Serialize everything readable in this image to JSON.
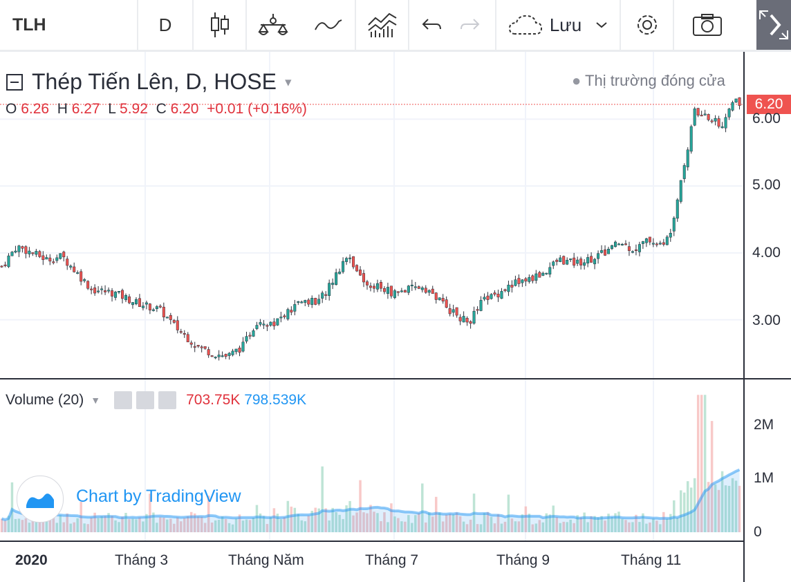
{
  "toolbar": {
    "symbol": "TLH",
    "interval": "D",
    "save_label": "Lưu",
    "icons": [
      "candles-icon",
      "indicators-icon",
      "compare-icon",
      "templates-icon",
      "undo-icon",
      "redo-icon",
      "cloud-icon",
      "chevron-down-icon",
      "settings-icon",
      "camera-icon",
      "fullscreen-icon"
    ]
  },
  "legend": {
    "title": "Thép Tiến Lên, D, HOSE",
    "o_label": "O",
    "o_value": "6.26",
    "h_label": "H",
    "h_value": "6.27",
    "l_label": "L",
    "l_value": "5.92",
    "c_label": "C",
    "c_value": "6.20",
    "change": "+0.01 (+0.16%)",
    "market_status": "Thị trường đóng cửa"
  },
  "price_axis": {
    "current_price": "6.20",
    "ticks": [
      "6.00",
      "5.00",
      "4.00",
      "3.00"
    ]
  },
  "volume": {
    "label": "Volume (20)",
    "value": "703.75K",
    "ma_value": "798.539K",
    "ticks": [
      "2M",
      "1M",
      "0"
    ]
  },
  "brand": "Chart by TradingView",
  "time_axis": [
    "2020",
    "Tháng 3",
    "Tháng Năm",
    "Tháng 7",
    "Tháng 9",
    "Tháng 11"
  ],
  "colors": {
    "up": "#26a69a",
    "down": "#ef5350",
    "ma": "#2196f3",
    "accent": "#2196f3"
  },
  "chart_data": {
    "type": "candlestick",
    "symbol": "TLH",
    "interval": "D",
    "price_ylim": [
      2.2,
      6.8
    ],
    "volume_ylim": [
      0,
      2800000
    ],
    "series_close": [
      [
        0.0,
        3.8
      ],
      [
        0.02,
        4.1
      ],
      [
        0.04,
        4.0
      ],
      [
        0.06,
        3.9
      ],
      [
        0.08,
        3.95
      ],
      [
        0.1,
        3.7
      ],
      [
        0.12,
        3.45
      ],
      [
        0.15,
        3.4
      ],
      [
        0.18,
        3.25
      ],
      [
        0.21,
        3.15
      ],
      [
        0.23,
        2.9
      ],
      [
        0.26,
        2.6
      ],
      [
        0.28,
        2.5
      ],
      [
        0.3,
        2.45
      ],
      [
        0.32,
        2.6
      ],
      [
        0.34,
        3.0
      ],
      [
        0.36,
        2.95
      ],
      [
        0.38,
        3.1
      ],
      [
        0.4,
        3.3
      ],
      [
        0.42,
        3.25
      ],
      [
        0.44,
        3.6
      ],
      [
        0.46,
        4.0
      ],
      [
        0.48,
        3.55
      ],
      [
        0.5,
        3.5
      ],
      [
        0.52,
        3.4
      ],
      [
        0.54,
        3.45
      ],
      [
        0.56,
        3.5
      ],
      [
        0.58,
        3.3
      ],
      [
        0.6,
        3.1
      ],
      [
        0.62,
        2.95
      ],
      [
        0.64,
        3.3
      ],
      [
        0.66,
        3.4
      ],
      [
        0.68,
        3.55
      ],
      [
        0.7,
        3.6
      ],
      [
        0.72,
        3.7
      ],
      [
        0.74,
        3.9
      ],
      [
        0.76,
        3.85
      ],
      [
        0.78,
        3.9
      ],
      [
        0.8,
        4.0
      ],
      [
        0.82,
        4.15
      ],
      [
        0.84,
        4.05
      ],
      [
        0.86,
        4.2
      ],
      [
        0.88,
        4.1
      ],
      [
        0.89,
        4.4
      ],
      [
        0.9,
        5.0
      ],
      [
        0.91,
        5.5
      ],
      [
        0.92,
        6.1
      ],
      [
        0.94,
        6.0
      ],
      [
        0.96,
        5.9
      ],
      [
        0.97,
        6.3
      ],
      [
        0.98,
        6.2
      ]
    ]
  }
}
